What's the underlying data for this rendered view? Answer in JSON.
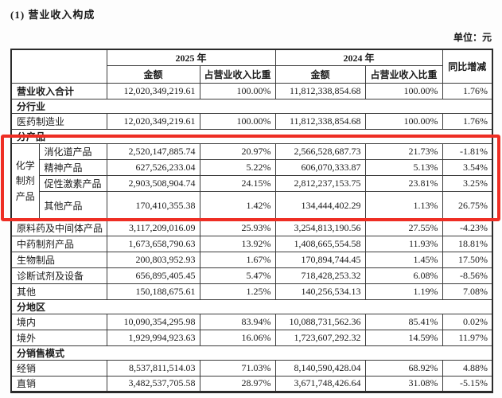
{
  "page": {
    "title": "(1) 营业收入构成",
    "unit_label": "单位：元"
  },
  "colors": {
    "highlight_red": "#ee2e24",
    "table_border": "#3c3c3c",
    "text": "#1a1a1a"
  },
  "table": {
    "header": {
      "year_2025": "2025 年",
      "year_2024": "2024 年",
      "amount": "金额",
      "ratio": "占营业收入比重",
      "yoy": "同比增减"
    },
    "group_label": "化学制剂产品",
    "rows": [
      {
        "type": "data",
        "bold": true,
        "label": "营业收入合计",
        "cells": [
          "12,020,349,219.61",
          "100.00%",
          "11,812,338,854.68",
          "100.00%",
          "1.76%"
        ]
      },
      {
        "type": "section",
        "label": "分行业"
      },
      {
        "type": "data",
        "bold": false,
        "label": "医药制造业",
        "cells": [
          "12,020,349,219.61",
          "100.00%",
          "11,812,338,854.68",
          "100.00%",
          "1.76%"
        ]
      },
      {
        "type": "section",
        "label": "分产品"
      },
      {
        "type": "group-start",
        "label": "消化道产品",
        "cells": [
          "2,520,147,885.74",
          "20.97%",
          "2,566,528,687.73",
          "21.73%",
          "-1.81%"
        ]
      },
      {
        "type": "group",
        "label": "精神产品",
        "cells": [
          "627,526,233.04",
          "5.22%",
          "606,070,333.87",
          "5.13%",
          "3.54%"
        ]
      },
      {
        "type": "group",
        "label": "促性激素产品",
        "cells": [
          "2,903,508,904.74",
          "24.15%",
          "2,812,237,153.75",
          "23.81%",
          "3.25%"
        ]
      },
      {
        "type": "group",
        "tall": true,
        "label": "其他产品",
        "cells": [
          "170,410,355.38",
          "1.42%",
          "134,444,402.29",
          "1.13%",
          "26.75%"
        ]
      },
      {
        "type": "data",
        "bold": false,
        "label": "原料药及中间体产品",
        "cells": [
          "3,117,209,016.09",
          "25.93%",
          "3,254,813,190.56",
          "27.55%",
          "-4.23%"
        ]
      },
      {
        "type": "data",
        "bold": false,
        "label": "中药制剂产品",
        "cells": [
          "1,673,658,790.63",
          "13.92%",
          "1,408,665,554.58",
          "11.93%",
          "18.81%"
        ]
      },
      {
        "type": "data",
        "bold": false,
        "label": "生物制品",
        "cells": [
          "200,803,952.93",
          "1.67%",
          "170,894,744.45",
          "1.45%",
          "17.50%"
        ]
      },
      {
        "type": "data",
        "bold": false,
        "label": "诊断试剂及设备",
        "cells": [
          "656,895,405.45",
          "5.47%",
          "718,428,253.32",
          "6.08%",
          "-8.56%"
        ]
      },
      {
        "type": "data",
        "bold": false,
        "label": "其他",
        "cells": [
          "150,188,675.61",
          "1.25%",
          "140,256,534.13",
          "1.19%",
          "7.08%"
        ]
      },
      {
        "type": "section",
        "label": "分地区"
      },
      {
        "type": "data",
        "bold": false,
        "label": "境内",
        "cells": [
          "10,090,354,295.98",
          "83.94%",
          "10,088,731,562.36",
          "85.41%",
          "0.02%"
        ]
      },
      {
        "type": "data",
        "bold": false,
        "label": "境外",
        "cells": [
          "1,929,994,923.63",
          "16.06%",
          "1,723,607,292.32",
          "14.59%",
          "11.97%"
        ]
      },
      {
        "type": "section",
        "label": "分销售模式"
      },
      {
        "type": "data",
        "bold": false,
        "label": "经销",
        "cells": [
          "8,537,811,514.03",
          "71.03%",
          "8,140,590,428.04",
          "68.92%",
          "4.88%"
        ]
      },
      {
        "type": "data",
        "bold": false,
        "label": "直销",
        "cells": [
          "3,482,537,705.58",
          "28.97%",
          "3,671,748,426.64",
          "31.08%",
          "-5.15%"
        ]
      }
    ]
  }
}
